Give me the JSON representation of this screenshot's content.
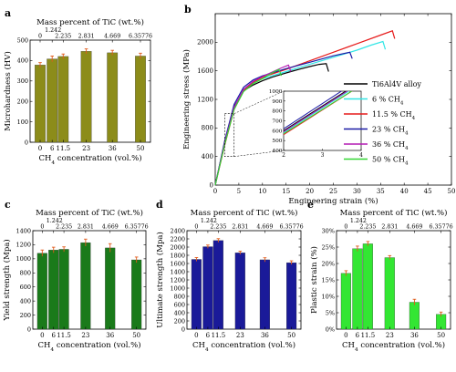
{
  "colors": {
    "olive": "#8c8c1a",
    "green": "#1a7a1a",
    "navy": "#1a1a99",
    "lime": "#33e633",
    "error": "#e05a1a",
    "alloy": "#000000",
    "ch6": "#33e6e6",
    "ch11": "#e61a1a",
    "ch23": "#1a1aa6",
    "ch36": "#b31ab3",
    "ch50": "#33d633"
  },
  "panels": {
    "a": {
      "letter": "a"
    },
    "b": {
      "letter": "b"
    },
    "c": {
      "letter": "c"
    },
    "d": {
      "letter": "d"
    },
    "e": {
      "letter": "e"
    }
  },
  "chart_data": [
    {
      "id": "a",
      "type": "bar",
      "categories": [
        "0",
        "6",
        "11.5",
        "23",
        "36",
        "50"
      ],
      "x_positions": [
        0,
        6,
        11.5,
        23,
        36,
        50
      ],
      "values": [
        378,
        408,
        420,
        445,
        438,
        422
      ],
      "errors": [
        12,
        14,
        12,
        12,
        12,
        14
      ],
      "xlabel": "CH4 concentration (vol.%)",
      "xlabel_main": "CH",
      "xlabel_sub": "4",
      "xlabel_rest": " concentration (vol.%)",
      "ylabel": "Microhardness (HV)",
      "ylim": [
        0,
        500
      ],
      "yticks": [
        0,
        100,
        200,
        300,
        400,
        500
      ],
      "xlim": [
        -5,
        55
      ],
      "top_axis_label": "Mass percent of TiC  (wt.%)",
      "top_ticks": [
        "0",
        "1.242",
        "2.235",
        "2.831",
        "4.669",
        "6.35776"
      ]
    },
    {
      "id": "c",
      "type": "bar",
      "categories": [
        "0",
        "6",
        "11.5",
        "23",
        "36",
        "50"
      ],
      "x_positions": [
        0,
        6,
        11.5,
        23,
        36,
        50
      ],
      "values": [
        1080,
        1125,
        1135,
        1230,
        1155,
        985
      ],
      "errors": [
        45,
        40,
        35,
        50,
        60,
        40
      ],
      "xlabel": "CH4 concentration (vol.%)",
      "xlabel_main": "CH",
      "xlabel_sub": "4",
      "xlabel_rest": " concentration (vol.%)",
      "ylabel": "Yield strength (Mpa)",
      "ylim": [
        0,
        1400
      ],
      "yticks": [
        0,
        200,
        400,
        600,
        800,
        1000,
        1200,
        1400
      ],
      "xlim": [
        -5,
        55
      ],
      "top_axis_label": "Mass percent of TiC  (wt.%)",
      "top_ticks": [
        "0",
        "1.242",
        "2.235",
        "2.831",
        "4.669",
        "6.35776"
      ]
    },
    {
      "id": "d",
      "type": "bar",
      "categories": [
        "0",
        "6",
        "11.5",
        "23",
        "36",
        "50"
      ],
      "x_positions": [
        0,
        6,
        11.5,
        23,
        36,
        50
      ],
      "values": [
        1700,
        2010,
        2160,
        1860,
        1690,
        1620
      ],
      "errors": [
        45,
        40,
        45,
        40,
        50,
        45
      ],
      "xlabel": "CH4 concentration (vol.%)",
      "xlabel_main": "CH",
      "xlabel_sub": "4",
      "xlabel_rest": " concentration (vol.%)",
      "ylabel": "Ultimate strength (Mpa)",
      "ylim": [
        0,
        2400
      ],
      "yticks": [
        0,
        200,
        400,
        600,
        800,
        1000,
        1200,
        1400,
        1600,
        1800,
        2000,
        2200,
        2400
      ],
      "xlim": [
        -5,
        55
      ],
      "top_axis_label": "Mass percent of TiC  (wt.%)",
      "top_ticks": [
        "0",
        "1.242",
        "2.235",
        "2.831",
        "4.669",
        "6.35776"
      ]
    },
    {
      "id": "e",
      "type": "bar",
      "categories": [
        "0",
        "6",
        "11.5",
        "23",
        "36",
        "50"
      ],
      "x_positions": [
        0,
        6,
        11.5,
        23,
        36,
        50
      ],
      "values": [
        17,
        24.5,
        26,
        21.8,
        8.2,
        4.5
      ],
      "errors": [
        0.8,
        0.8,
        0.7,
        0.6,
        0.9,
        0.7
      ],
      "xlabel": "CH4 concentration (vol.%)",
      "xlabel_main": "CH",
      "xlabel_sub": "4",
      "xlabel_rest": " concentration (vol.%)",
      "ylabel": "Plastic strain (%)",
      "ylim": [
        0,
        30
      ],
      "yticks": [
        0,
        5,
        10,
        15,
        20,
        25,
        30
      ],
      "ytick_labels": [
        "0%",
        "5%",
        "10%",
        "15%",
        "20%",
        "25%",
        "30%"
      ],
      "xlim": [
        -5,
        55
      ],
      "top_axis_label": "Mass percent of TiC  (wt.%)",
      "top_ticks": [
        "0",
        "1.242",
        "2.235",
        "2.831",
        "4.669",
        "6.35776"
      ]
    },
    {
      "id": "b",
      "type": "line",
      "xlabel": "Engineering strain (%)",
      "ylabel": "Engineering stress (MPa)",
      "xlim": [
        0,
        50
      ],
      "ylim": [
        0,
        2400
      ],
      "xticks": [
        0,
        5,
        10,
        15,
        20,
        25,
        30,
        35,
        40,
        45,
        50
      ],
      "yticks": [
        0,
        400,
        800,
        1200,
        1600,
        2000
      ],
      "legend_position": "right",
      "series": [
        {
          "name": "Ti6Al4V alloy",
          "label_main": "Ti6Al4V alloy",
          "label_sub": "",
          "color_key": "alloy",
          "x": [
            0,
            2,
            4,
            6,
            8,
            10,
            12,
            14,
            16,
            18,
            20,
            22,
            23.5,
            24
          ],
          "y": [
            0,
            600,
            1100,
            1320,
            1400,
            1460,
            1510,
            1550,
            1590,
            1625,
            1660,
            1690,
            1700,
            1590
          ]
        },
        {
          "name": "6 % CH4",
          "label_main": "6 % CH",
          "label_sub": "4",
          "color_key": "ch6",
          "x": [
            0,
            2,
            4,
            6,
            8,
            10,
            15,
            20,
            25,
            30,
            33,
            35.5,
            36
          ],
          "y": [
            0,
            580,
            1080,
            1330,
            1430,
            1490,
            1590,
            1690,
            1790,
            1890,
            1960,
            2010,
            1900
          ]
        },
        {
          "name": "11.5 % CH4",
          "label_main": "11.5 % CH",
          "label_sub": "4",
          "color_key": "ch11",
          "x": [
            0,
            2,
            4,
            6,
            8,
            10,
            15,
            20,
            25,
            30,
            35,
            37.5,
            38
          ],
          "y": [
            0,
            560,
            1060,
            1320,
            1440,
            1510,
            1620,
            1740,
            1860,
            1980,
            2100,
            2160,
            2050
          ]
        },
        {
          "name": "23 % CH4",
          "label_main": "23 % CH",
          "label_sub": "4",
          "color_key": "ch23",
          "x": [
            0,
            2,
            4,
            6,
            8,
            10,
            15,
            20,
            25,
            28.5,
            29
          ],
          "y": [
            0,
            620,
            1130,
            1370,
            1470,
            1530,
            1630,
            1720,
            1810,
            1860,
            1770
          ]
        },
        {
          "name": "36 % CH4",
          "label_main": "36 % CH",
          "label_sub": "4",
          "color_key": "ch36",
          "x": [
            0,
            2,
            4,
            6,
            8,
            10,
            12,
            14,
            15.5,
            16
          ],
          "y": [
            0,
            590,
            1090,
            1340,
            1450,
            1520,
            1580,
            1640,
            1680,
            1590
          ]
        },
        {
          "name": "50 % CH4",
          "label_main": "50 % CH",
          "label_sub": "4",
          "color_key": "ch50",
          "x": [
            0,
            2,
            4,
            6,
            8,
            10,
            12,
            13.5,
            14
          ],
          "y": [
            0,
            570,
            1060,
            1310,
            1420,
            1490,
            1570,
            1620,
            1530
          ]
        }
      ],
      "inset": {
        "xlim": [
          2,
          4
        ],
        "ylim": [
          400,
          1000
        ],
        "xticks": [
          2,
          3,
          4
        ],
        "yticks": [
          400,
          500,
          600,
          700,
          800,
          900,
          1000
        ]
      }
    }
  ]
}
